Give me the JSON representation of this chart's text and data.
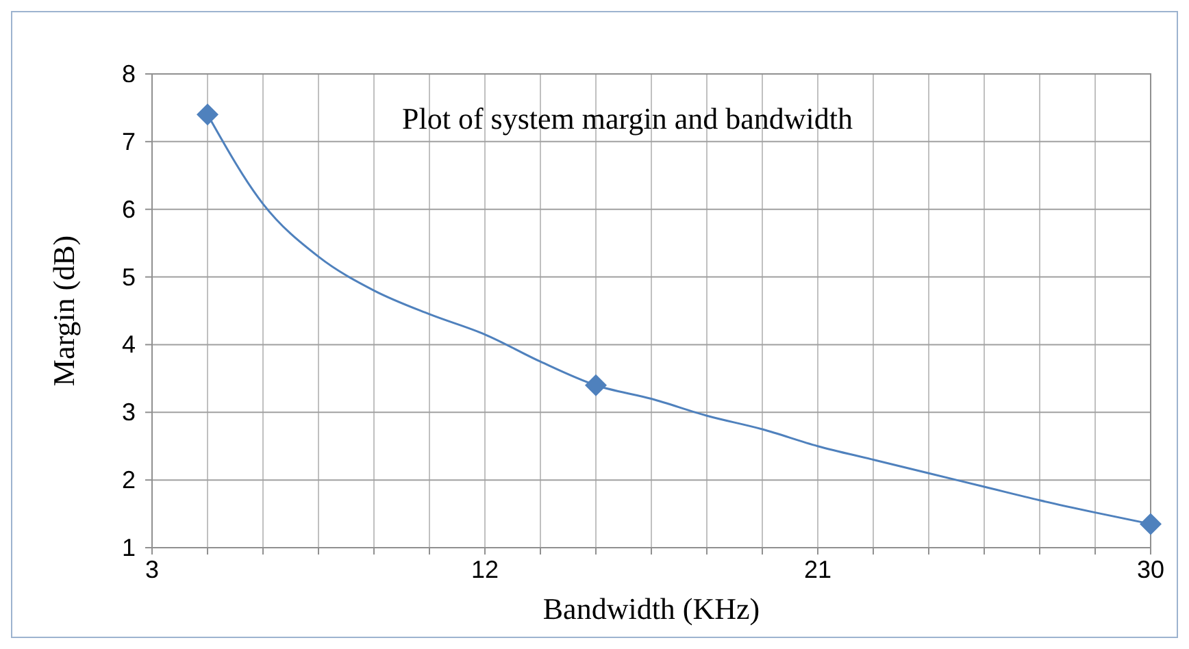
{
  "chart_data": {
    "type": "scatter",
    "title": "Plot of system margin and bandwidth",
    "xlabel": "Bandwidth (KHz)",
    "ylabel": "Margin (dB)",
    "xlim": [
      3,
      30
    ],
    "ylim": [
      1,
      8
    ],
    "xticks": [
      3,
      {
        "value": 4.5,
        "label": null
      },
      {
        "value": 6,
        "label": null
      },
      {
        "value": 7.5,
        "label": null
      },
      {
        "value": 9,
        "label": null
      },
      {
        "value": 10.5,
        "label": null
      },
      12,
      {
        "value": 13.5,
        "label": null
      },
      {
        "value": 15,
        "label": null
      },
      {
        "value": 16.5,
        "label": null
      },
      {
        "value": 18,
        "label": null
      },
      {
        "value": 19.5,
        "label": null
      },
      21,
      {
        "value": 22.5,
        "label": null
      },
      {
        "value": 24,
        "label": null
      },
      {
        "value": 25.5,
        "label": null
      },
      {
        "value": 27,
        "label": null
      },
      {
        "value": 28.5,
        "label": null
      },
      30
    ],
    "yticks": [
      1,
      2,
      3,
      4,
      5,
      6,
      7,
      8
    ],
    "grid": true,
    "series": [
      {
        "color": "#4f81bd",
        "marker": "diamond",
        "x": [
          4.5,
          15,
          30
        ],
        "values": [
          7.4,
          3.4,
          1.35
        ]
      },
      {
        "type": "line",
        "color": "#4f81bd",
        "marker": "none",
        "x": [
          4.5,
          6,
          7.5,
          9,
          10.5,
          12,
          13.5,
          15,
          16.5,
          18,
          19.5,
          21,
          22.5,
          24,
          25.5,
          27,
          28.5,
          30
        ],
        "values": [
          7.4,
          6.08,
          5.3,
          4.8,
          4.45,
          4.15,
          3.75,
          3.4,
          3.2,
          2.95,
          2.75,
          2.5,
          2.3,
          2.1,
          1.9,
          1.7,
          1.52,
          1.35
        ]
      }
    ]
  }
}
